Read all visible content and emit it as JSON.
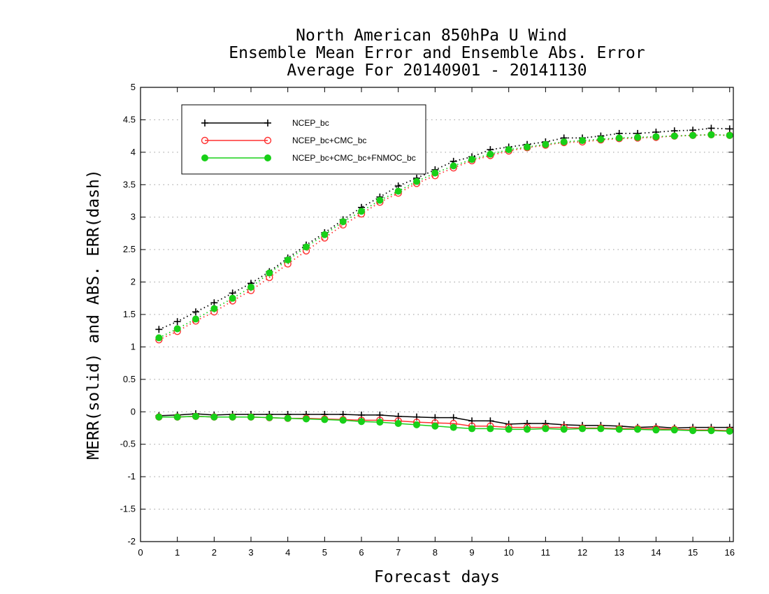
{
  "chart_data": {
    "type": "line",
    "title": [
      "North American 850hPa U Wind",
      "Ensemble Mean Error and Ensemble Abs. Error",
      "Average For 20140901 - 20141130"
    ],
    "xlabel": "Forecast days",
    "ylabel": "MERR(solid) and ABS. ERR(dash)",
    "xlim": [
      0,
      16.1
    ],
    "ylim": [
      -2,
      5
    ],
    "xticks": [
      "0",
      "1",
      "2",
      "3",
      "4",
      "5",
      "6",
      "7",
      "8",
      "9",
      "10",
      "11",
      "12",
      "13",
      "14",
      "15",
      "16"
    ],
    "yticks": [
      "5",
      "4.5",
      "4",
      "3.5",
      "3",
      "2.5",
      "2",
      "1.5",
      "1",
      "0.5",
      "0",
      "-0.5",
      "-1",
      "-1.5",
      "-2"
    ],
    "grid": "horizontal dotted",
    "legend_position": "top-left",
    "x": [
      0.5,
      1.0,
      1.5,
      2.0,
      2.5,
      3.0,
      3.5,
      4.0,
      4.5,
      5.0,
      5.5,
      6.0,
      6.5,
      7.0,
      7.5,
      8.0,
      8.5,
      9.0,
      9.5,
      10.0,
      10.5,
      11.0,
      11.5,
      12.0,
      12.5,
      13.0,
      13.5,
      14.0,
      14.5,
      15.0,
      15.5,
      16.0
    ],
    "series": [
      {
        "name": "NCEP_bc",
        "color": "#000000",
        "marker": "plus",
        "merr": [
          -0.06,
          -0.05,
          -0.03,
          -0.05,
          -0.04,
          -0.04,
          -0.04,
          -0.04,
          -0.04,
          -0.04,
          -0.04,
          -0.05,
          -0.05,
          -0.07,
          -0.08,
          -0.09,
          -0.09,
          -0.14,
          -0.14,
          -0.19,
          -0.18,
          -0.18,
          -0.2,
          -0.21,
          -0.21,
          -0.22,
          -0.24,
          -0.23,
          -0.25,
          -0.24,
          -0.24,
          -0.24
        ],
        "abs_err": [
          1.27,
          1.39,
          1.54,
          1.68,
          1.83,
          1.98,
          2.16,
          2.37,
          2.57,
          2.76,
          2.96,
          3.15,
          3.31,
          3.48,
          3.6,
          3.73,
          3.86,
          3.93,
          4.04,
          4.08,
          4.12,
          4.16,
          4.22,
          4.22,
          4.25,
          4.29,
          4.29,
          4.31,
          4.33,
          4.34,
          4.37,
          4.36
        ]
      },
      {
        "name": "NCEP_bc+CMC_bc",
        "color": "#ff3030",
        "marker": "open-circle",
        "merr": [
          -0.08,
          -0.08,
          -0.07,
          -0.08,
          -0.08,
          -0.08,
          -0.09,
          -0.1,
          -0.1,
          -0.11,
          -0.12,
          -0.13,
          -0.13,
          -0.14,
          -0.16,
          -0.17,
          -0.18,
          -0.22,
          -0.22,
          -0.24,
          -0.24,
          -0.24,
          -0.24,
          -0.25,
          -0.25,
          -0.26,
          -0.26,
          -0.26,
          -0.27,
          -0.28,
          -0.28,
          -0.29
        ],
        "abs_err": [
          1.11,
          1.24,
          1.4,
          1.54,
          1.71,
          1.87,
          2.07,
          2.28,
          2.48,
          2.68,
          2.88,
          3.05,
          3.23,
          3.37,
          3.52,
          3.64,
          3.76,
          3.87,
          3.95,
          4.02,
          4.07,
          4.11,
          4.15,
          4.16,
          4.19,
          4.21,
          4.22,
          4.23,
          4.25,
          4.26,
          4.27,
          4.26
        ]
      },
      {
        "name": "NCEP_bc+CMC_bc+FNMOC_bc",
        "color": "#18d018",
        "marker": "filled-circle",
        "merr": [
          -0.08,
          -0.08,
          -0.07,
          -0.08,
          -0.08,
          -0.08,
          -0.09,
          -0.1,
          -0.11,
          -0.12,
          -0.13,
          -0.15,
          -0.16,
          -0.18,
          -0.2,
          -0.22,
          -0.24,
          -0.26,
          -0.26,
          -0.27,
          -0.27,
          -0.26,
          -0.27,
          -0.26,
          -0.26,
          -0.27,
          -0.27,
          -0.28,
          -0.28,
          -0.29,
          -0.29,
          -0.3
        ],
        "abs_err": [
          1.14,
          1.28,
          1.43,
          1.59,
          1.75,
          1.92,
          2.14,
          2.34,
          2.54,
          2.73,
          2.93,
          3.09,
          3.26,
          3.4,
          3.55,
          3.68,
          3.79,
          3.89,
          3.97,
          4.04,
          4.08,
          4.12,
          4.16,
          4.18,
          4.2,
          4.22,
          4.23,
          4.24,
          4.25,
          4.26,
          4.27,
          4.26
        ]
      }
    ]
  }
}
